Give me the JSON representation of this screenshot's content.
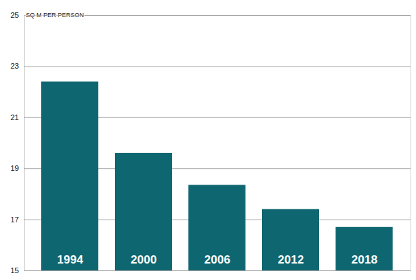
{
  "chart_data": {
    "type": "bar",
    "ylabel": "SQ M PER PERSON",
    "categories": [
      "1994",
      "2000",
      "2006",
      "2012",
      "2018"
    ],
    "values": [
      22.4,
      19.6,
      18.35,
      17.4,
      16.7
    ],
    "color": "#0e6670",
    "ylim": [
      15,
      25
    ],
    "yticks": [
      15,
      17,
      19,
      21,
      23,
      25
    ],
    "grid": true
  }
}
